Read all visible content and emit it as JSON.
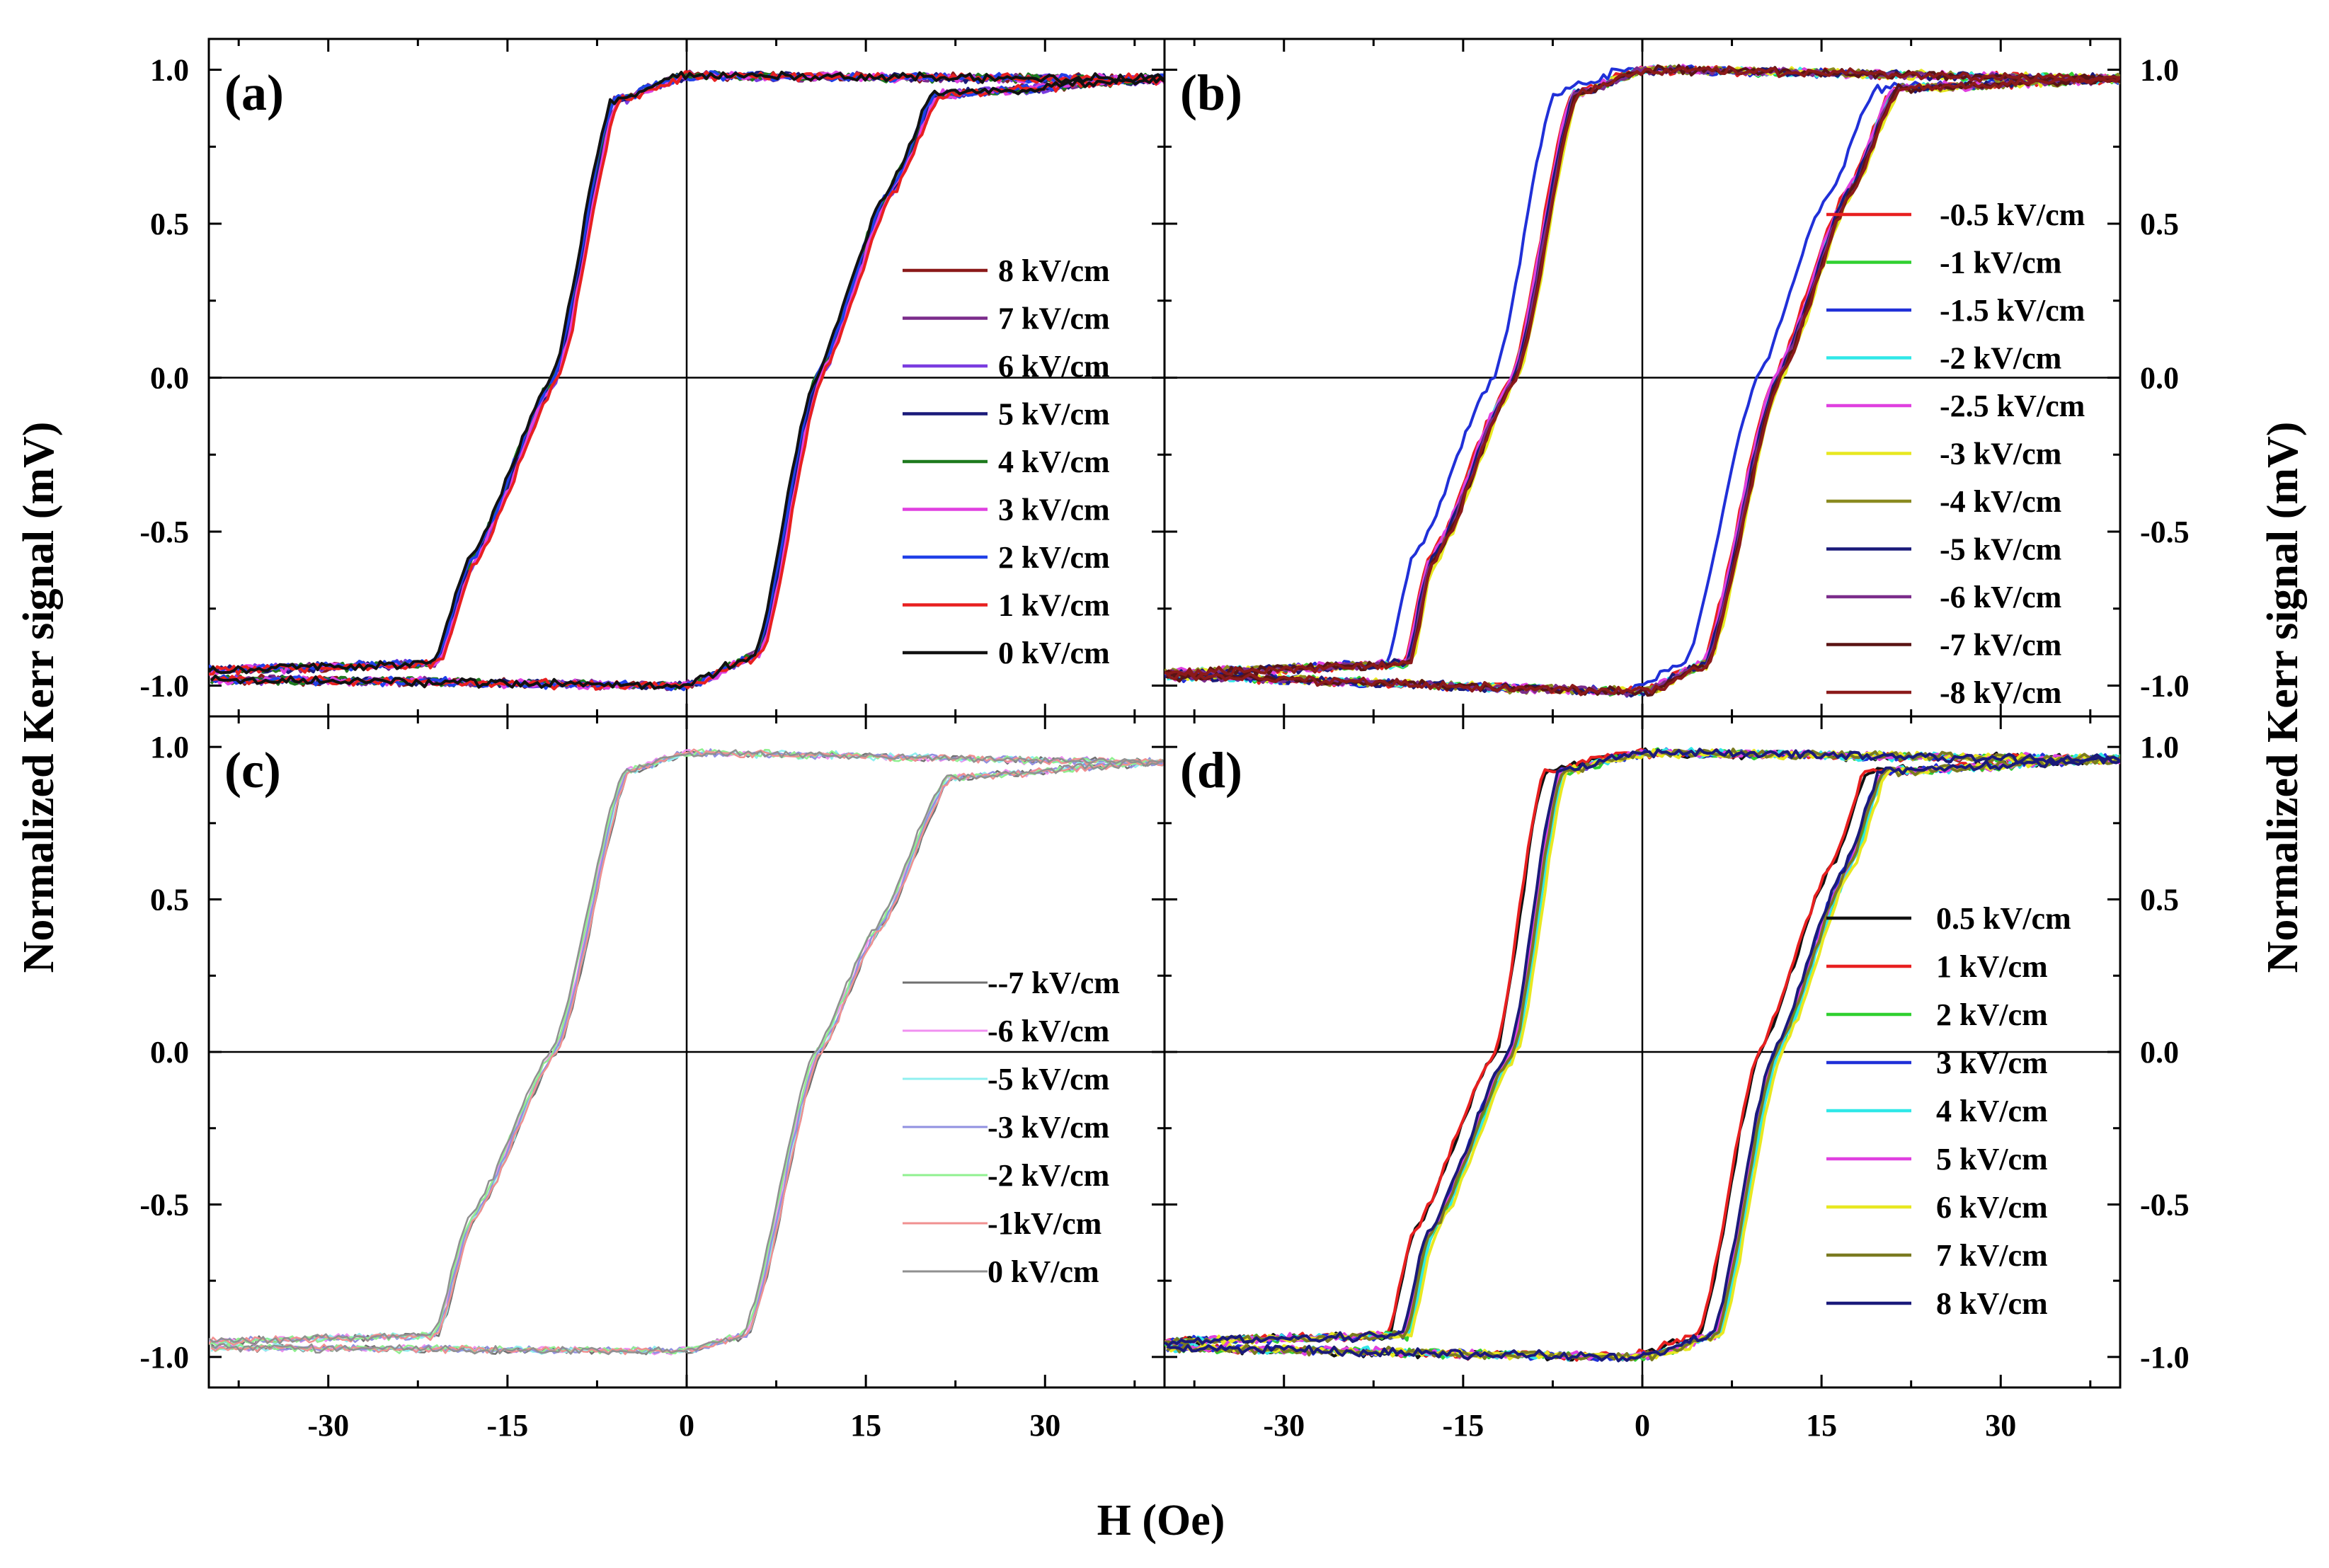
{
  "figure": {
    "xlabel": "H (Oe)",
    "ylabel_left": "Normalized Kerr signal (mV)",
    "ylabel_right": "Normalized Kerr signal (mV)"
  },
  "chart_data": [
    {
      "type": "line",
      "panel": "a",
      "title": "(a)",
      "xlabel": "H (Oe)",
      "ylabel": "Normalized Kerr signal (mV)",
      "xlim": [
        -40,
        40
      ],
      "ylim": [
        -1.1,
        1.1
      ],
      "xticks": [
        -30,
        -15,
        0,
        15,
        30
      ],
      "xtick_labels": [
        "-30",
        "-15",
        "0",
        "15",
        "30"
      ],
      "yticks": [
        -1.0,
        -0.5,
        0.0,
        0.5,
        1.0
      ],
      "ytick_labels": [
        "-1.0",
        "-0.5",
        "0.0",
        "0.5",
        "1.0"
      ],
      "legend_position": "center-right",
      "loop_shape": {
        "lower_branch": [
          [
            -40,
            -0.95
          ],
          [
            -21,
            -0.93
          ],
          [
            -18,
            -0.6
          ],
          [
            -11,
            0.0
          ],
          [
            -6,
            0.9
          ],
          [
            0,
            0.98
          ],
          [
            40,
            0.97
          ]
        ],
        "upper_branch": [
          [
            40,
            0.97
          ],
          [
            21,
            0.92
          ],
          [
            17,
            0.6
          ],
          [
            11,
            0.0
          ],
          [
            6,
            -0.9
          ],
          [
            0,
            -1.0
          ],
          [
            -40,
            -0.98
          ]
        ]
      },
      "series": [
        {
          "name": "8 kV/cm",
          "color": "#8B1A1A",
          "shift": 0.1
        },
        {
          "name": "7 kV/cm",
          "color": "#7B2C8B",
          "shift": -0.1
        },
        {
          "name": "6 kV/cm",
          "color": "#7A3CE0",
          "shift": 0.2
        },
        {
          "name": "5 kV/cm",
          "color": "#1A1A7A",
          "shift": 0.0
        },
        {
          "name": "4 kV/cm",
          "color": "#1E7A1E",
          "shift": -0.2
        },
        {
          "name": "3 kV/cm",
          "color": "#E040E0",
          "shift": 0.15
        },
        {
          "name": "2 kV/cm",
          "color": "#2040E8",
          "shift": -0.15
        },
        {
          "name": "1 kV/cm",
          "color": "#E82020",
          "shift": 0.3
        },
        {
          "name": "0 kV/cm",
          "color": "#111111",
          "shift": -0.3
        }
      ]
    },
    {
      "type": "line",
      "panel": "b",
      "title": "(b)",
      "xlabel": "H (Oe)",
      "ylabel": "Normalized Kerr signal (mV)",
      "xlim": [
        -40,
        40
      ],
      "ylim": [
        -1.1,
        1.1
      ],
      "xticks": [
        -30,
        -15,
        0,
        15,
        30
      ],
      "xtick_labels": [
        "-30",
        "-15",
        "0",
        "15",
        "30"
      ],
      "yticks": [
        -1.0,
        -0.5,
        0.0,
        0.5,
        1.0
      ],
      "ytick_labels": [
        "-1.0",
        "-0.5",
        "0.0",
        "0.5",
        "1.0"
      ],
      "legend_position": "center-right",
      "loop_shape": {
        "lower_branch": [
          [
            -40,
            -0.96
          ],
          [
            -20,
            -0.93
          ],
          [
            -18,
            -0.6
          ],
          [
            -11,
            0.0
          ],
          [
            -6,
            0.92
          ],
          [
            0,
            1.0
          ],
          [
            40,
            0.97
          ]
        ],
        "upper_branch": [
          [
            40,
            0.97
          ],
          [
            21,
            0.94
          ],
          [
            17,
            0.6
          ],
          [
            11,
            0.0
          ],
          [
            5,
            -0.93
          ],
          [
            0,
            -1.02
          ],
          [
            -40,
            -0.97
          ]
        ]
      },
      "series": [
        {
          "name": "-0.5 kV/cm",
          "color": "#E82020",
          "shift": 0.0
        },
        {
          "name": "-1 kV/cm",
          "color": "#30D030",
          "shift": 0.3
        },
        {
          "name": "-1.5 kV/cm",
          "color": "#2030D8",
          "shift": -1.4
        },
        {
          "name": "-2  kV/cm",
          "color": "#30E8E8",
          "shift": 0.2
        },
        {
          "name": "-2.5 kV/cm",
          "color": "#E040E0",
          "shift": 0.1
        },
        {
          "name": "-3 kV/cm",
          "color": "#E8E820",
          "shift": 0.6
        },
        {
          "name": "-4 kV/cm",
          "color": "#8A8A20",
          "shift": 0.4
        },
        {
          "name": "-5 kV/cm",
          "color": "#1A1A7A",
          "shift": 0.25
        },
        {
          "name": "-6 kV/cm",
          "color": "#7B2C8B",
          "shift": 0.35
        },
        {
          "name": "-7 kV/cm",
          "color": "#5A1414",
          "shift": 0.45
        },
        {
          "name": "-8 kV/cm",
          "color": "#8B1A1A",
          "shift": 0.5
        }
      ]
    },
    {
      "type": "line",
      "panel": "c",
      "title": "(c)",
      "xlabel": "H (Oe)",
      "ylabel": "Normalized Kerr signal (mV)",
      "xlim": [
        -40,
        40
      ],
      "ylim": [
        -1.1,
        1.1
      ],
      "xticks": [
        -30,
        -15,
        0,
        15,
        30
      ],
      "xtick_labels": [
        "-30",
        "-15",
        "0",
        "15",
        "30"
      ],
      "yticks": [
        -1.0,
        -0.5,
        0.0,
        0.5,
        1.0
      ],
      "ytick_labels": [
        "-1.0",
        "-0.5",
        "0.0",
        "0.5",
        "1.0"
      ],
      "legend_position": "center-right",
      "loop_shape": {
        "lower_branch": [
          [
            -40,
            -0.95
          ],
          [
            -21,
            -0.93
          ],
          [
            -18,
            -0.55
          ],
          [
            -11,
            0.0
          ],
          [
            -5,
            0.92
          ],
          [
            0,
            0.98
          ],
          [
            40,
            0.95
          ]
        ],
        "upper_branch": [
          [
            40,
            0.95
          ],
          [
            22,
            0.9
          ],
          [
            16,
            0.4
          ],
          [
            11,
            0.0
          ],
          [
            5,
            -0.93
          ],
          [
            0,
            -0.98
          ],
          [
            -40,
            -0.97
          ]
        ]
      },
      "series": [
        {
          "name": "--7 kV/cm",
          "color": "#707070",
          "shift": 0.2
        },
        {
          "name": "-6 kV/cm",
          "color": "#F090F0",
          "shift": -0.1
        },
        {
          "name": "-5 kV/cm",
          "color": "#90F0F0",
          "shift": 0.1
        },
        {
          "name": "-3 kV/cm",
          "color": "#9090E0",
          "shift": 0.0
        },
        {
          "name": "-2 kV/cm",
          "color": "#90F090",
          "shift": -0.2
        },
        {
          "name": "-1kV/cm",
          "color": "#F09090",
          "shift": 0.15
        },
        {
          "name": "0 kV/cm",
          "color": "#909090",
          "shift": -0.3
        }
      ]
    },
    {
      "type": "line",
      "panel": "d",
      "title": "(d)",
      "xlabel": "H (Oe)",
      "ylabel": "Normalized Kerr signal (mV)",
      "xlim": [
        -40,
        40
      ],
      "ylim": [
        -1.1,
        1.1
      ],
      "xticks": [
        -30,
        -15,
        0,
        15,
        30
      ],
      "xtick_labels": [
        "-30",
        "-15",
        "0",
        "15",
        "30"
      ],
      "yticks": [
        -1.0,
        -0.5,
        0.0,
        0.5,
        1.0
      ],
      "ytick_labels": [
        "-1.0",
        "-0.5",
        "0.0",
        "0.5",
        "1.0"
      ],
      "legend_position": "center-right",
      "loop_shape": {
        "lower_branch": [
          [
            -40,
            -0.95
          ],
          [
            -20,
            -0.93
          ],
          [
            -18,
            -0.6
          ],
          [
            -11,
            0.0
          ],
          [
            -7,
            0.92
          ],
          [
            0,
            0.98
          ],
          [
            40,
            0.96
          ]
        ],
        "upper_branch": [
          [
            40,
            0.96
          ],
          [
            20,
            0.92
          ],
          [
            17,
            0.6
          ],
          [
            11,
            0.0
          ],
          [
            6,
            -0.93
          ],
          [
            0,
            -1.0
          ],
          [
            -40,
            -0.97
          ]
        ]
      },
      "series": [
        {
          "name": "0.5 kV/cm",
          "color": "#111111",
          "shift": -1.2
        },
        {
          "name": "1 kV/cm",
          "color": "#E82020",
          "shift": -1.3
        },
        {
          "name": "2 kV/cm",
          "color": "#30D030",
          "shift": 0.3
        },
        {
          "name": "3 kV/cm",
          "color": "#2030D8",
          "shift": 0.0
        },
        {
          "name": "4 kV/cm",
          "color": "#30E8E8",
          "shift": 0.4
        },
        {
          "name": "5 kV/cm",
          "color": "#E040E0",
          "shift": 0.1
        },
        {
          "name": "6 kV/cm",
          "color": "#E8E820",
          "shift": 0.6
        },
        {
          "name": "7 kV/cm",
          "color": "#7A7A20",
          "shift": 0.2
        },
        {
          "name": "8 kV/cm",
          "color": "#1A1A7A",
          "shift": -0.1
        }
      ]
    }
  ]
}
